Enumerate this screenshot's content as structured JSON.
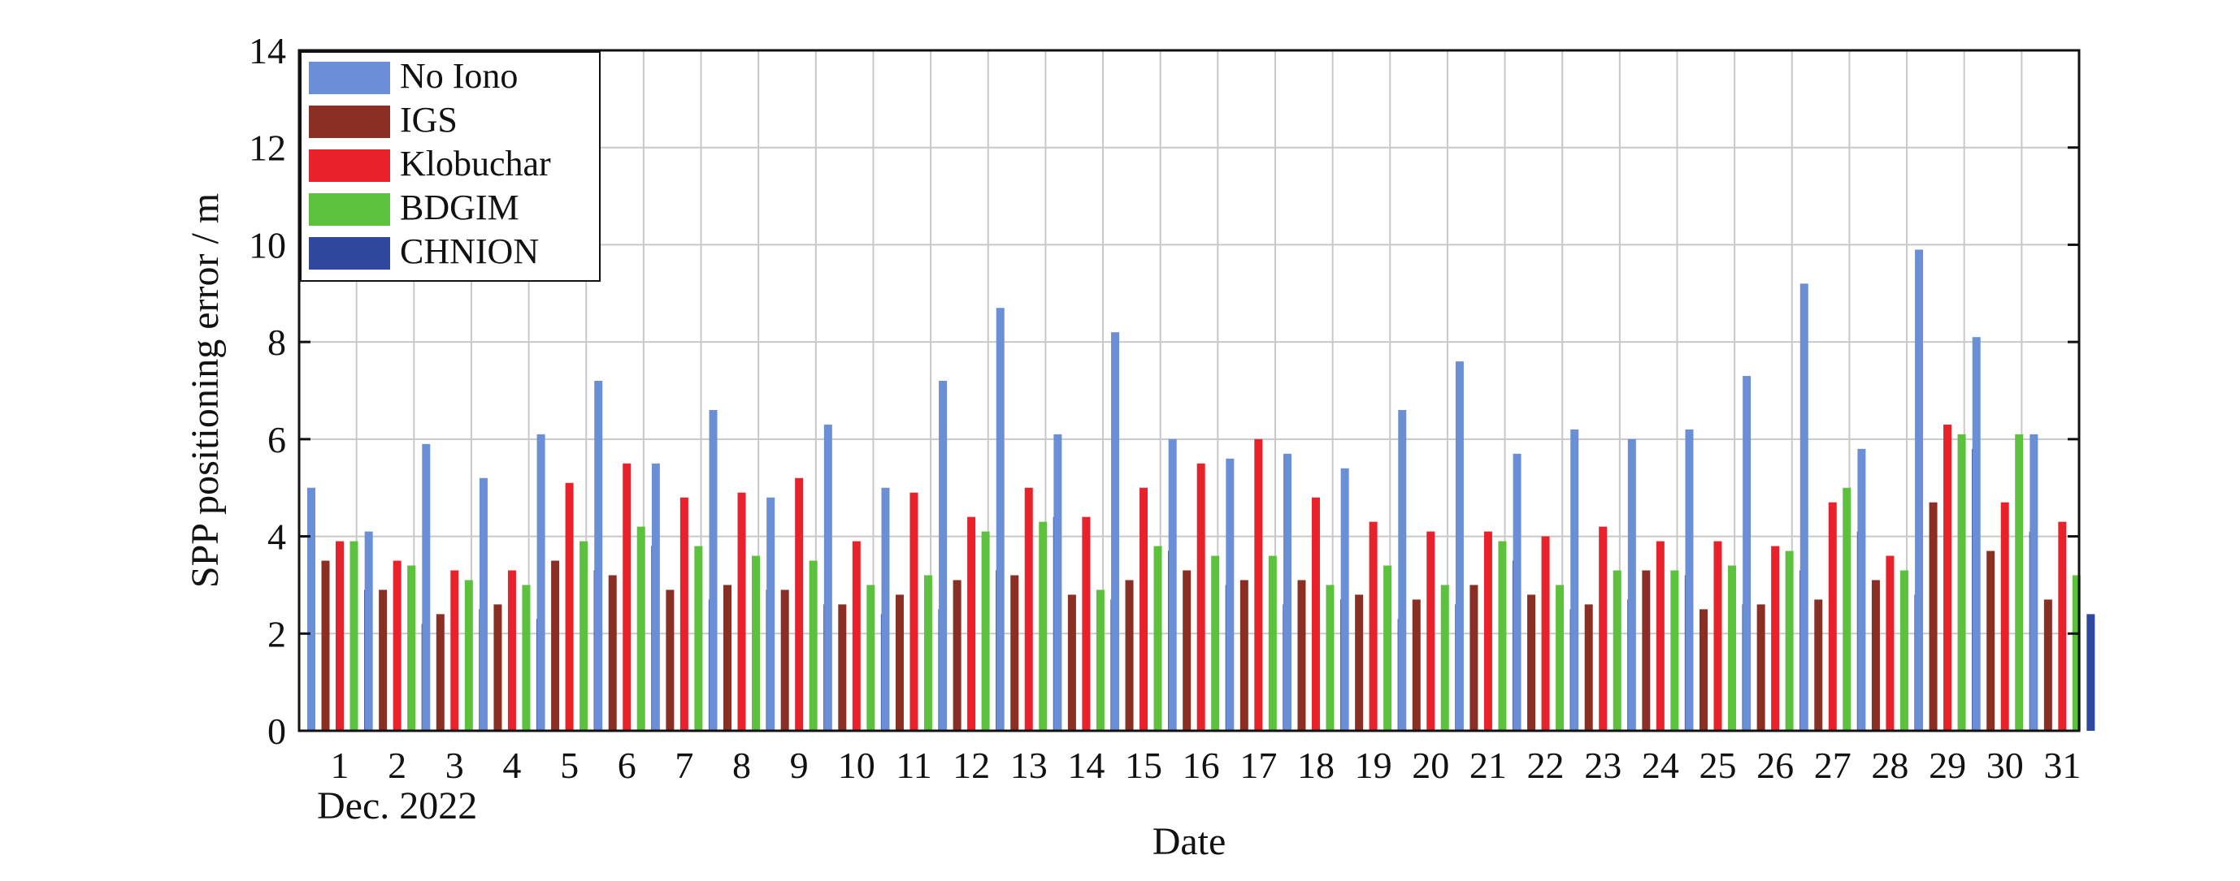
{
  "chart_data": {
    "type": "bar",
    "title": "",
    "xlabel": "Date",
    "x_sublabel": "Dec. 2022",
    "ylabel": "SPP positioning error / m",
    "ylim": [
      0,
      14
    ],
    "yticks": [
      "0",
      "2",
      "4",
      "6",
      "8",
      "10",
      "12",
      "14"
    ],
    "grid": true,
    "legend_position": "top-left",
    "categories": [
      "1",
      "2",
      "3",
      "4",
      "5",
      "6",
      "7",
      "8",
      "9",
      "10",
      "11",
      "12",
      "13",
      "14",
      "15",
      "16",
      "17",
      "18",
      "19",
      "20",
      "21",
      "22",
      "23",
      "24",
      "25",
      "26",
      "27",
      "28",
      "29",
      "30",
      "31"
    ],
    "series": [
      {
        "name": "No Iono",
        "color": "#6a8fd6",
        "values": [
          5.0,
          4.1,
          5.9,
          5.2,
          6.1,
          7.2,
          5.5,
          6.6,
          4.8,
          6.3,
          5.0,
          7.2,
          8.7,
          6.1,
          8.2,
          6.0,
          5.6,
          5.7,
          5.4,
          6.6,
          7.6,
          5.7,
          6.2,
          6.0,
          6.2,
          7.3,
          9.2,
          5.8,
          9.9,
          8.1,
          6.1
        ]
      },
      {
        "name": "IGS",
        "color": "#8b2e24",
        "values": [
          3.5,
          2.9,
          2.4,
          2.6,
          3.5,
          3.2,
          2.9,
          3.0,
          2.9,
          2.6,
          2.8,
          3.1,
          3.2,
          2.8,
          3.1,
          3.3,
          3.1,
          3.1,
          2.8,
          2.7,
          3.0,
          2.8,
          2.6,
          3.3,
          2.5,
          2.6,
          2.7,
          3.1,
          4.7,
          3.7,
          2.7
        ]
      },
      {
        "name": "Klobuchar",
        "color": "#e8212b",
        "values": [
          3.9,
          3.5,
          3.3,
          3.3,
          5.1,
          5.5,
          4.8,
          4.9,
          5.2,
          3.9,
          4.9,
          4.4,
          5.0,
          4.4,
          5.0,
          5.5,
          6.0,
          4.8,
          4.3,
          4.1,
          4.1,
          4.0,
          4.2,
          3.9,
          3.9,
          3.8,
          4.7,
          3.6,
          6.3,
          4.7,
          4.3
        ]
      },
      {
        "name": "BDGIM",
        "color": "#5cc23d",
        "values": [
          3.9,
          3.4,
          3.1,
          3.0,
          3.9,
          4.2,
          3.8,
          3.6,
          3.5,
          3.0,
          3.2,
          4.1,
          4.3,
          2.9,
          3.8,
          3.6,
          3.6,
          3.0,
          3.4,
          3.0,
          3.9,
          3.0,
          3.3,
          3.3,
          3.4,
          3.7,
          5.0,
          3.3,
          6.1,
          6.1,
          3.2
        ]
      },
      {
        "name": "CHNION",
        "color": "#2f479c",
        "values": [
          2.9,
          2.2,
          2.5,
          2.3,
          3.3,
          3.8,
          2.7,
          2.9,
          2.6,
          2.4,
          2.5,
          3.3,
          4.4,
          2.7,
          3.7,
          3.0,
          2.6,
          2.7,
          2.3,
          2.6,
          3.5,
          2.5,
          2.7,
          3.2,
          2.6,
          3.3,
          4.1,
          2.8,
          5.8,
          4.1,
          2.4
        ]
      }
    ]
  }
}
